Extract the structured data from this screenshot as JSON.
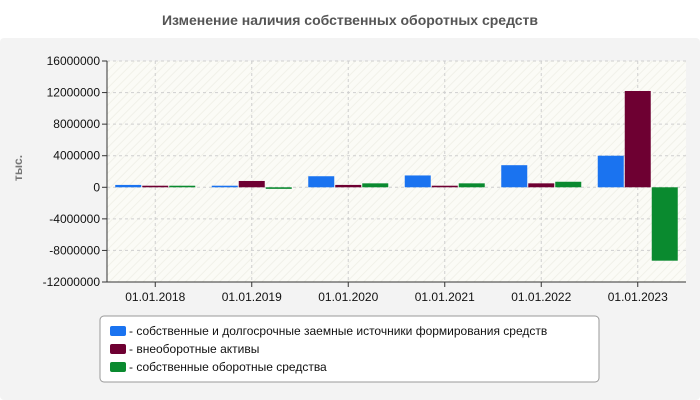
{
  "chart_data": {
    "type": "bar",
    "title": "Изменение наличия собственных оборотных средств",
    "ylabel": "тыс.",
    "xlabel": "",
    "categories": [
      "01.01.2018",
      "01.01.2019",
      "01.01.2020",
      "01.01.2021",
      "01.01.2022",
      "01.01.2023"
    ],
    "ylim": [
      -12000000,
      16000000
    ],
    "yticks": [
      16000000,
      12000000,
      8000000,
      4000000,
      0,
      -4000000,
      -8000000,
      -12000000
    ],
    "ytick_labels": [
      "16000000",
      "12000000",
      "8000000",
      "4000000",
      "0",
      "-4000000",
      "-8000000",
      "-12000000"
    ],
    "grid": true,
    "legend_position": "bottom",
    "series": [
      {
        "name": "- собственные и долгосрочные заемные источники формирования средств",
        "color": "#1a73f0",
        "values": [
          300000,
          200000,
          1400000,
          1500000,
          2800000,
          4000000
        ]
      },
      {
        "name": "- внеоборотные активы",
        "color": "#6e0032",
        "values": [
          200000,
          800000,
          300000,
          200000,
          500000,
          12200000
        ]
      },
      {
        "name": "- собственные оборотные средства",
        "color": "#0a8a2f",
        "values": [
          200000,
          -200000,
          500000,
          500000,
          700000,
          -9300000
        ]
      }
    ]
  }
}
